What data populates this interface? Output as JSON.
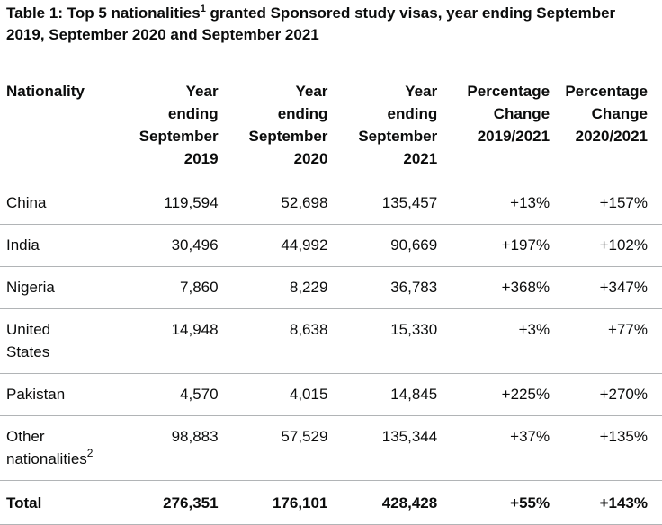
{
  "caption": {
    "prefix": "Table 1: Top 5 nationalities",
    "sup": "1",
    "suffix": " granted Sponsored study visas, year ending September 2019, September 2020 and September 2021"
  },
  "headers": [
    [
      "Nationality"
    ],
    [
      "Year",
      "ending",
      "September",
      "2019"
    ],
    [
      "Year",
      "ending",
      "September",
      "2020"
    ],
    [
      "Year",
      "ending",
      "September",
      "2021"
    ],
    [
      "Percentage",
      "Change",
      "2019/2021"
    ],
    [
      "Percentage",
      "Change",
      "2020/2021"
    ]
  ],
  "rows": [
    {
      "nationality": [
        "China"
      ],
      "y2019": "119,594",
      "y2020": "52,698",
      "y2021": "135,457",
      "pc1921": "+13%",
      "pc2021": "+157%"
    },
    {
      "nationality": [
        "India"
      ],
      "y2019": "30,496",
      "y2020": "44,992",
      "y2021": "90,669",
      "pc1921": "+197%",
      "pc2021": "+102%"
    },
    {
      "nationality": [
        "Nigeria"
      ],
      "y2019": "7,860",
      "y2020": "8,229",
      "y2021": "36,783",
      "pc1921": "+368%",
      "pc2021": "+347%"
    },
    {
      "nationality": [
        "United",
        "States"
      ],
      "y2019": "14,948",
      "y2020": "8,638",
      "y2021": "15,330",
      "pc1921": "+3%",
      "pc2021": "+77%"
    },
    {
      "nationality": [
        "Pakistan"
      ],
      "y2019": "4,570",
      "y2020": "4,015",
      "y2021": "14,845",
      "pc1921": "+225%",
      "pc2021": "+270%"
    },
    {
      "nationality": [
        "Other",
        "nationalities"
      ],
      "nationality_sup": "2",
      "y2019": "98,883",
      "y2020": "57,529",
      "y2021": "135,344",
      "pc1921": "+37%",
      "pc2021": "+135%"
    }
  ],
  "total": {
    "label": "Total",
    "y2019": "276,351",
    "y2020": "176,101",
    "y2021": "428,428",
    "pc1921": "+55%",
    "pc2021": "+143%"
  }
}
